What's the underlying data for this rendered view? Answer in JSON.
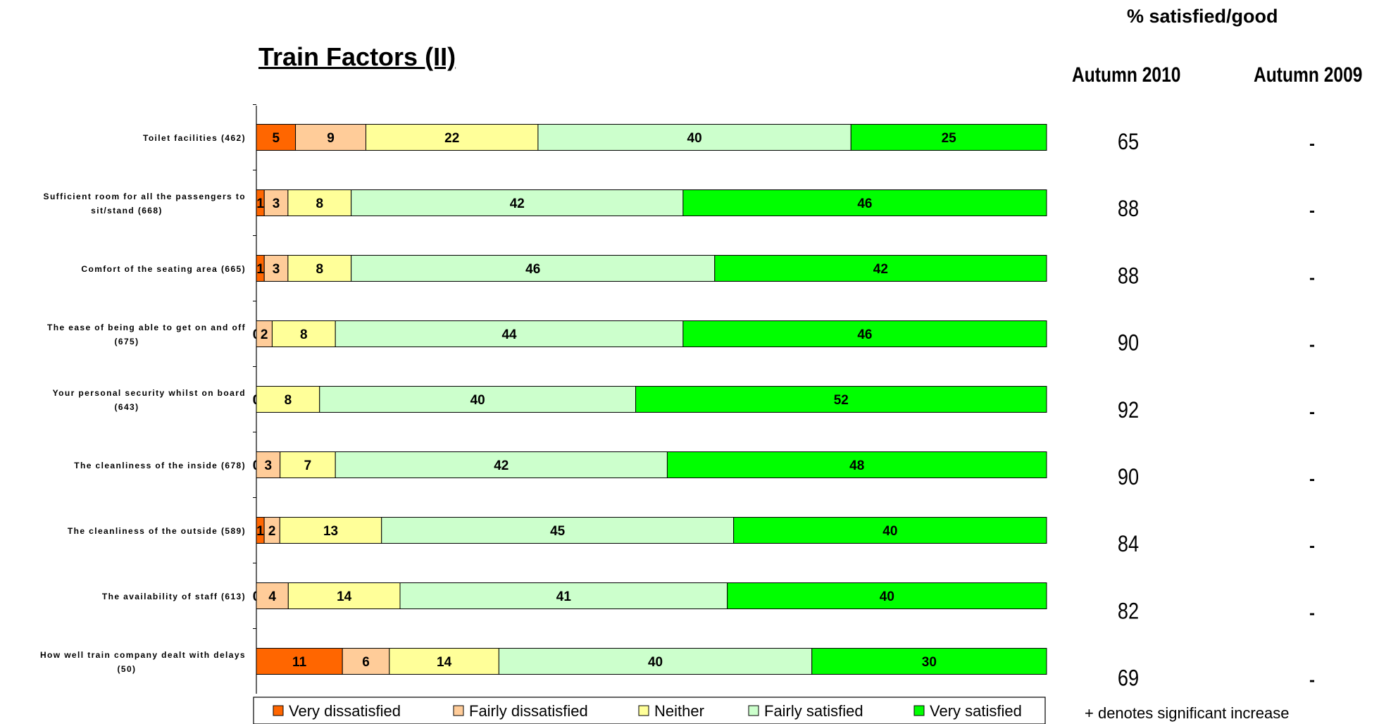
{
  "title": "Train Factors (II)",
  "right_panel": {
    "header": "% satisfied/good",
    "col_2010": "Autumn 2010",
    "col_2009": "Autumn 2009",
    "values_2010": [
      "65",
      "88",
      "88",
      "90",
      "92",
      "90",
      "84",
      "82",
      "69"
    ],
    "values_2009": [
      "-",
      "-",
      "-",
      "-",
      "-",
      "-",
      "-",
      "-",
      "-"
    ],
    "footnote": "+ denotes significant increase"
  },
  "colors": {
    "very_dissatisfied": "#FF6600",
    "fairly_dissatisfied": "#FFCC99",
    "neither": "#FFFF99",
    "fairly_satisfied": "#CCFFCC",
    "very_satisfied": "#00FF00"
  },
  "chart_data": {
    "type": "bar",
    "orientation": "horizontal",
    "stacked": true,
    "categories": [
      [
        "Toilet facilities (462)"
      ],
      [
        "Sufficient room for all the passengers to",
        "sit/stand (668)"
      ],
      [
        "Comfort of the seating area (665)"
      ],
      [
        "The ease of being able to get on and off",
        "(675)"
      ],
      [
        "Your personal security whilst on board",
        "(643)"
      ],
      [
        "The cleanliness of the inside (678)"
      ],
      [
        "The cleanliness of the outside (589)"
      ],
      [
        "The availability of staff (613)"
      ],
      [
        "How well train company dealt with delays",
        "(50)"
      ]
    ],
    "series": [
      {
        "name": "Very dissatisfied",
        "values": [
          5,
          1,
          1,
          0,
          0,
          0,
          1,
          0,
          11
        ]
      },
      {
        "name": "Fairly dissatisfied",
        "values": [
          9,
          3,
          3,
          2,
          0,
          3,
          2,
          4,
          6
        ]
      },
      {
        "name": "Neither",
        "values": [
          22,
          8,
          8,
          8,
          8,
          7,
          13,
          14,
          14
        ]
      },
      {
        "name": "Fairly satisfied",
        "values": [
          40,
          42,
          46,
          44,
          40,
          42,
          45,
          41,
          40
        ]
      },
      {
        "name": "Very satisfied",
        "values": [
          25,
          46,
          42,
          46,
          52,
          48,
          40,
          40,
          30
        ]
      }
    ],
    "legend_position": "bottom"
  }
}
